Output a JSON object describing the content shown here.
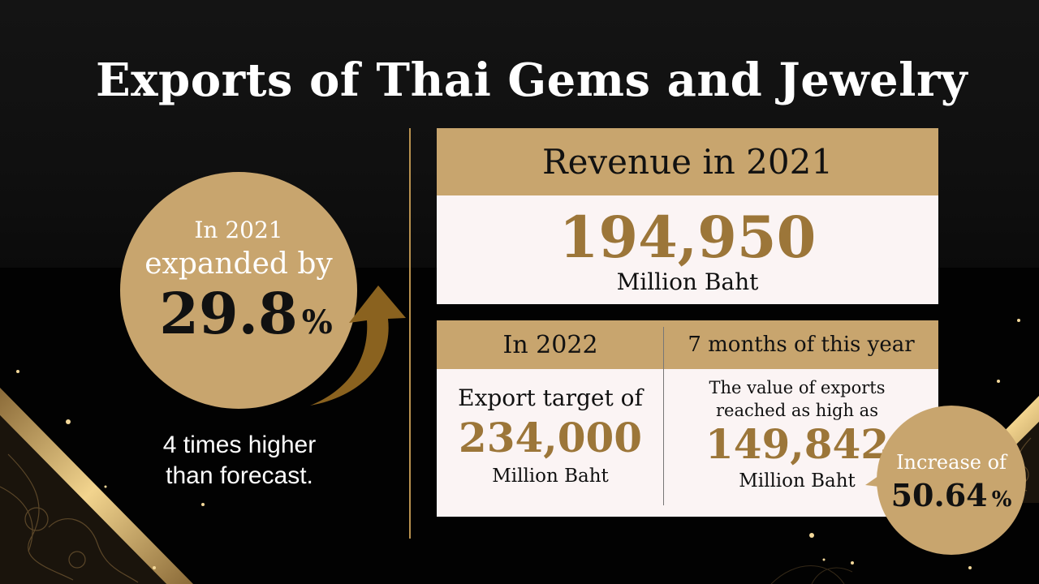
{
  "title": "Exports of Thai Gems and Jewelry",
  "colors": {
    "gold": "#c8a56e",
    "dark_gold": "#9c7639",
    "panel": "#fbf4f4",
    "background": "#000000"
  },
  "growth": {
    "year": "In 2021",
    "label": "expanded by",
    "value": "29.8",
    "unit": "%",
    "note_line1": "4 times higher",
    "note_line2": "than forecast."
  },
  "revenue": {
    "heading": "Revenue in 2021",
    "value": "194,950",
    "unit": "Million Baht"
  },
  "target": {
    "heading": "In 2022",
    "label": "Export target of",
    "value": "234,000",
    "unit": "Million Baht"
  },
  "ytd": {
    "heading": "7 months of this year",
    "label_line1": "The value of exports",
    "label_line2": "reached as high as",
    "value": "149,842",
    "unit": "Million Baht"
  },
  "increase": {
    "label": "Increase of",
    "value": "50.64",
    "unit": "%"
  },
  "icons": [
    "growth-arrow-icon",
    "callout-pointer-icon",
    "thai-pattern-decoration",
    "sparkle-dots-decoration"
  ]
}
